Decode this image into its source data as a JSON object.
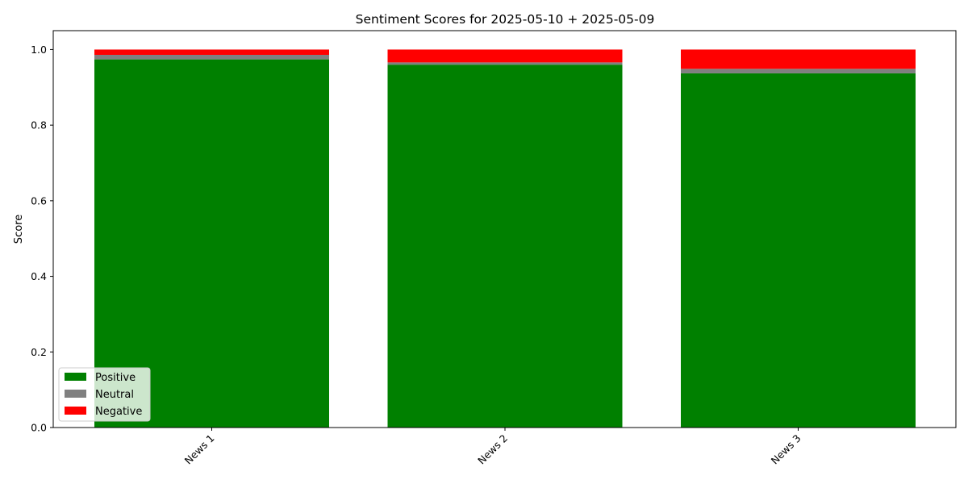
{
  "chart_data": {
    "type": "bar",
    "stacked": true,
    "title": "Sentiment Scores for 2025-05-10 + 2025-05-09",
    "xlabel": "",
    "ylabel": "Score",
    "categories": [
      "News 1",
      "News 2",
      "News 3"
    ],
    "series": [
      {
        "name": "Positive",
        "color": "#008000",
        "values": [
          0.974,
          0.96,
          0.937
        ]
      },
      {
        "name": "Neutral",
        "color": "#808080",
        "values": [
          0.012,
          0.006,
          0.012
        ]
      },
      {
        "name": "Negative",
        "color": "#ff0000",
        "values": [
          0.014,
          0.034,
          0.051
        ]
      }
    ],
    "ylim": [
      0,
      1.05
    ],
    "yticks": [
      0.0,
      0.2,
      0.4,
      0.6,
      0.8,
      1.0
    ],
    "ytick_labels": [
      "0.0",
      "0.2",
      "0.4",
      "0.6",
      "0.8",
      "1.0"
    ],
    "xtick_rotation": 45,
    "grid": false,
    "legend_position": "lower-left"
  }
}
